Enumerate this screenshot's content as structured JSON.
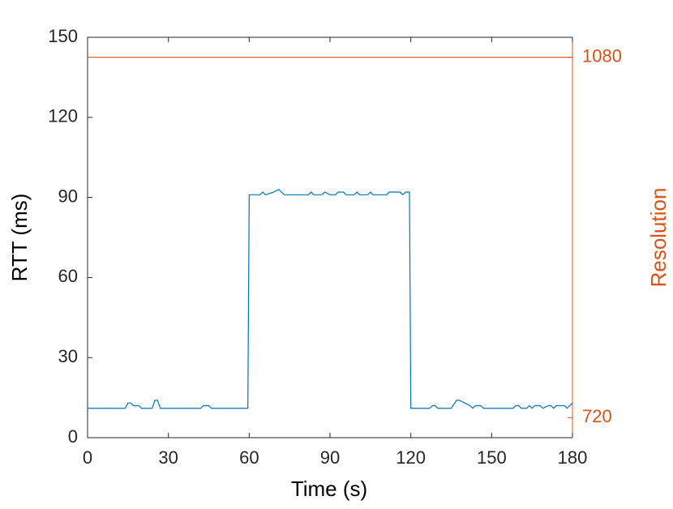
{
  "chart_data": {
    "type": "line",
    "xlabel": "Time (s)",
    "ylabel": "RTT (ms)",
    "y2label": "Resolution",
    "xlim": [
      0,
      180
    ],
    "xticks": [
      0,
      30,
      60,
      90,
      120,
      150,
      180
    ],
    "ylim": [
      0,
      150
    ],
    "yticks": [
      0,
      30,
      60,
      90,
      120,
      150
    ],
    "y2lim": [
      700,
      1100
    ],
    "y2ticks": [
      720,
      1080
    ],
    "y2color": "#d95319",
    "series": [
      {
        "name": "RTT",
        "color": "#0072bd",
        "x": [
          0,
          14,
          15,
          16,
          17,
          19,
          20,
          24,
          25,
          26,
          27,
          42,
          43,
          45,
          46,
          59.5,
          60,
          64,
          65,
          66,
          69,
          71,
          72,
          73,
          82,
          83,
          84,
          87,
          88,
          90,
          92,
          93,
          95,
          96,
          99,
          100,
          101,
          104,
          105,
          106,
          111,
          112,
          116,
          117,
          118,
          119.5,
          120,
          127,
          128,
          129,
          130,
          135,
          137,
          138,
          140,
          142,
          143,
          144,
          146,
          147,
          158,
          159,
          160,
          161,
          163,
          164,
          165,
          166,
          168,
          169,
          171,
          172,
          173,
          174,
          177,
          178,
          179,
          180
        ],
        "values": [
          11,
          11,
          13,
          13,
          12,
          12,
          11,
          11,
          14,
          14,
          11,
          11,
          12,
          12,
          11,
          11,
          91,
          91,
          92,
          91,
          92,
          93,
          92,
          91,
          91,
          92,
          91,
          91,
          92,
          91,
          91,
          92,
          92,
          91,
          91,
          92,
          91,
          91,
          92,
          91,
          91,
          92,
          92,
          91,
          92,
          92,
          11,
          11,
          12,
          12,
          11,
          11,
          14,
          14,
          13,
          12,
          11,
          12,
          12,
          11,
          11,
          12,
          12,
          11,
          11,
          12,
          11,
          12,
          12,
          11,
          12,
          12,
          11,
          12,
          12,
          11,
          12,
          13
        ]
      },
      {
        "name": "Resolution",
        "color": "#d95319",
        "axis": "y2",
        "x": [
          0,
          180
        ],
        "values": [
          1080,
          1080
        ]
      }
    ]
  }
}
